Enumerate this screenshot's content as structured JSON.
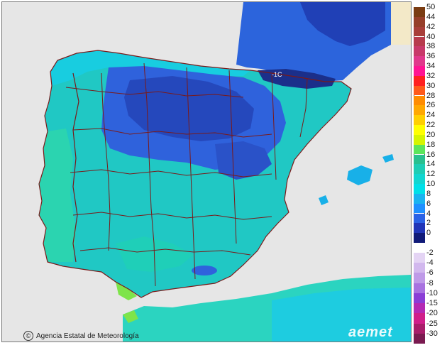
{
  "credit": {
    "text": "Agencia Estatal de Meteorología",
    "symbol": "©"
  },
  "brand": {
    "text": "aemet"
  },
  "map_label": "-1C",
  "legend": {
    "positive": [
      {
        "label": "50",
        "color": "#7a3c12"
      },
      {
        "label": "44",
        "color": "#963f2a"
      },
      {
        "label": "42",
        "color": "#a83f3a"
      },
      {
        "label": "40",
        "color": "#b73c4d"
      },
      {
        "label": "38",
        "color": "#c83a6a"
      },
      {
        "label": "36",
        "color": "#e0398c"
      },
      {
        "label": "34",
        "color": "#ff1493"
      },
      {
        "label": "32",
        "color": "#ff2020"
      },
      {
        "label": "30",
        "color": "#ff5a1a"
      },
      {
        "label": "28",
        "color": "#ff8c00"
      },
      {
        "label": "26",
        "color": "#ffa800"
      },
      {
        "label": "24",
        "color": "#ffd000"
      },
      {
        "label": "22",
        "color": "#ffff00"
      },
      {
        "label": "20",
        "color": "#d6f500"
      },
      {
        "label": "18",
        "color": "#5ce65c"
      },
      {
        "label": "16",
        "color": "#29c08f"
      },
      {
        "label": "14",
        "color": "#1ecdb4"
      },
      {
        "label": "12",
        "color": "#11d6d0"
      },
      {
        "label": "10",
        "color": "#00e0e8"
      },
      {
        "label": "8",
        "color": "#1ab4f0"
      },
      {
        "label": "6",
        "color": "#1e90ff"
      },
      {
        "label": "4",
        "color": "#2a62e6"
      },
      {
        "label": "2",
        "color": "#2035b8"
      },
      {
        "label": "0",
        "color": "#101a78"
      }
    ],
    "negative": [
      {
        "label": "-2",
        "color": "#e4d4f4"
      },
      {
        "label": "-4",
        "color": "#d2b8ee"
      },
      {
        "label": "-6",
        "color": "#bf9ae8"
      },
      {
        "label": "-8",
        "color": "#a872e0"
      },
      {
        "label": "-10",
        "color": "#8a3ed6"
      },
      {
        "label": "-15",
        "color": "#b42ab4"
      },
      {
        "label": "-20",
        "color": "#d01f8a"
      },
      {
        "label": "-25",
        "color": "#a81d6a"
      },
      {
        "label": "-30",
        "color": "#7a1a50"
      }
    ]
  },
  "colors": {
    "sea": "#e6e6e6",
    "land_base": "#20c8c4",
    "coast_high": "#2bd4b0",
    "cold_inland": "#2f62dc",
    "very_cold": "#1d3ea6",
    "pyrenees": "#1b2f8a",
    "north_sea_band": "#2c64dc",
    "borders": "#7a1a1a",
    "warm_green": "#7ee44a"
  }
}
